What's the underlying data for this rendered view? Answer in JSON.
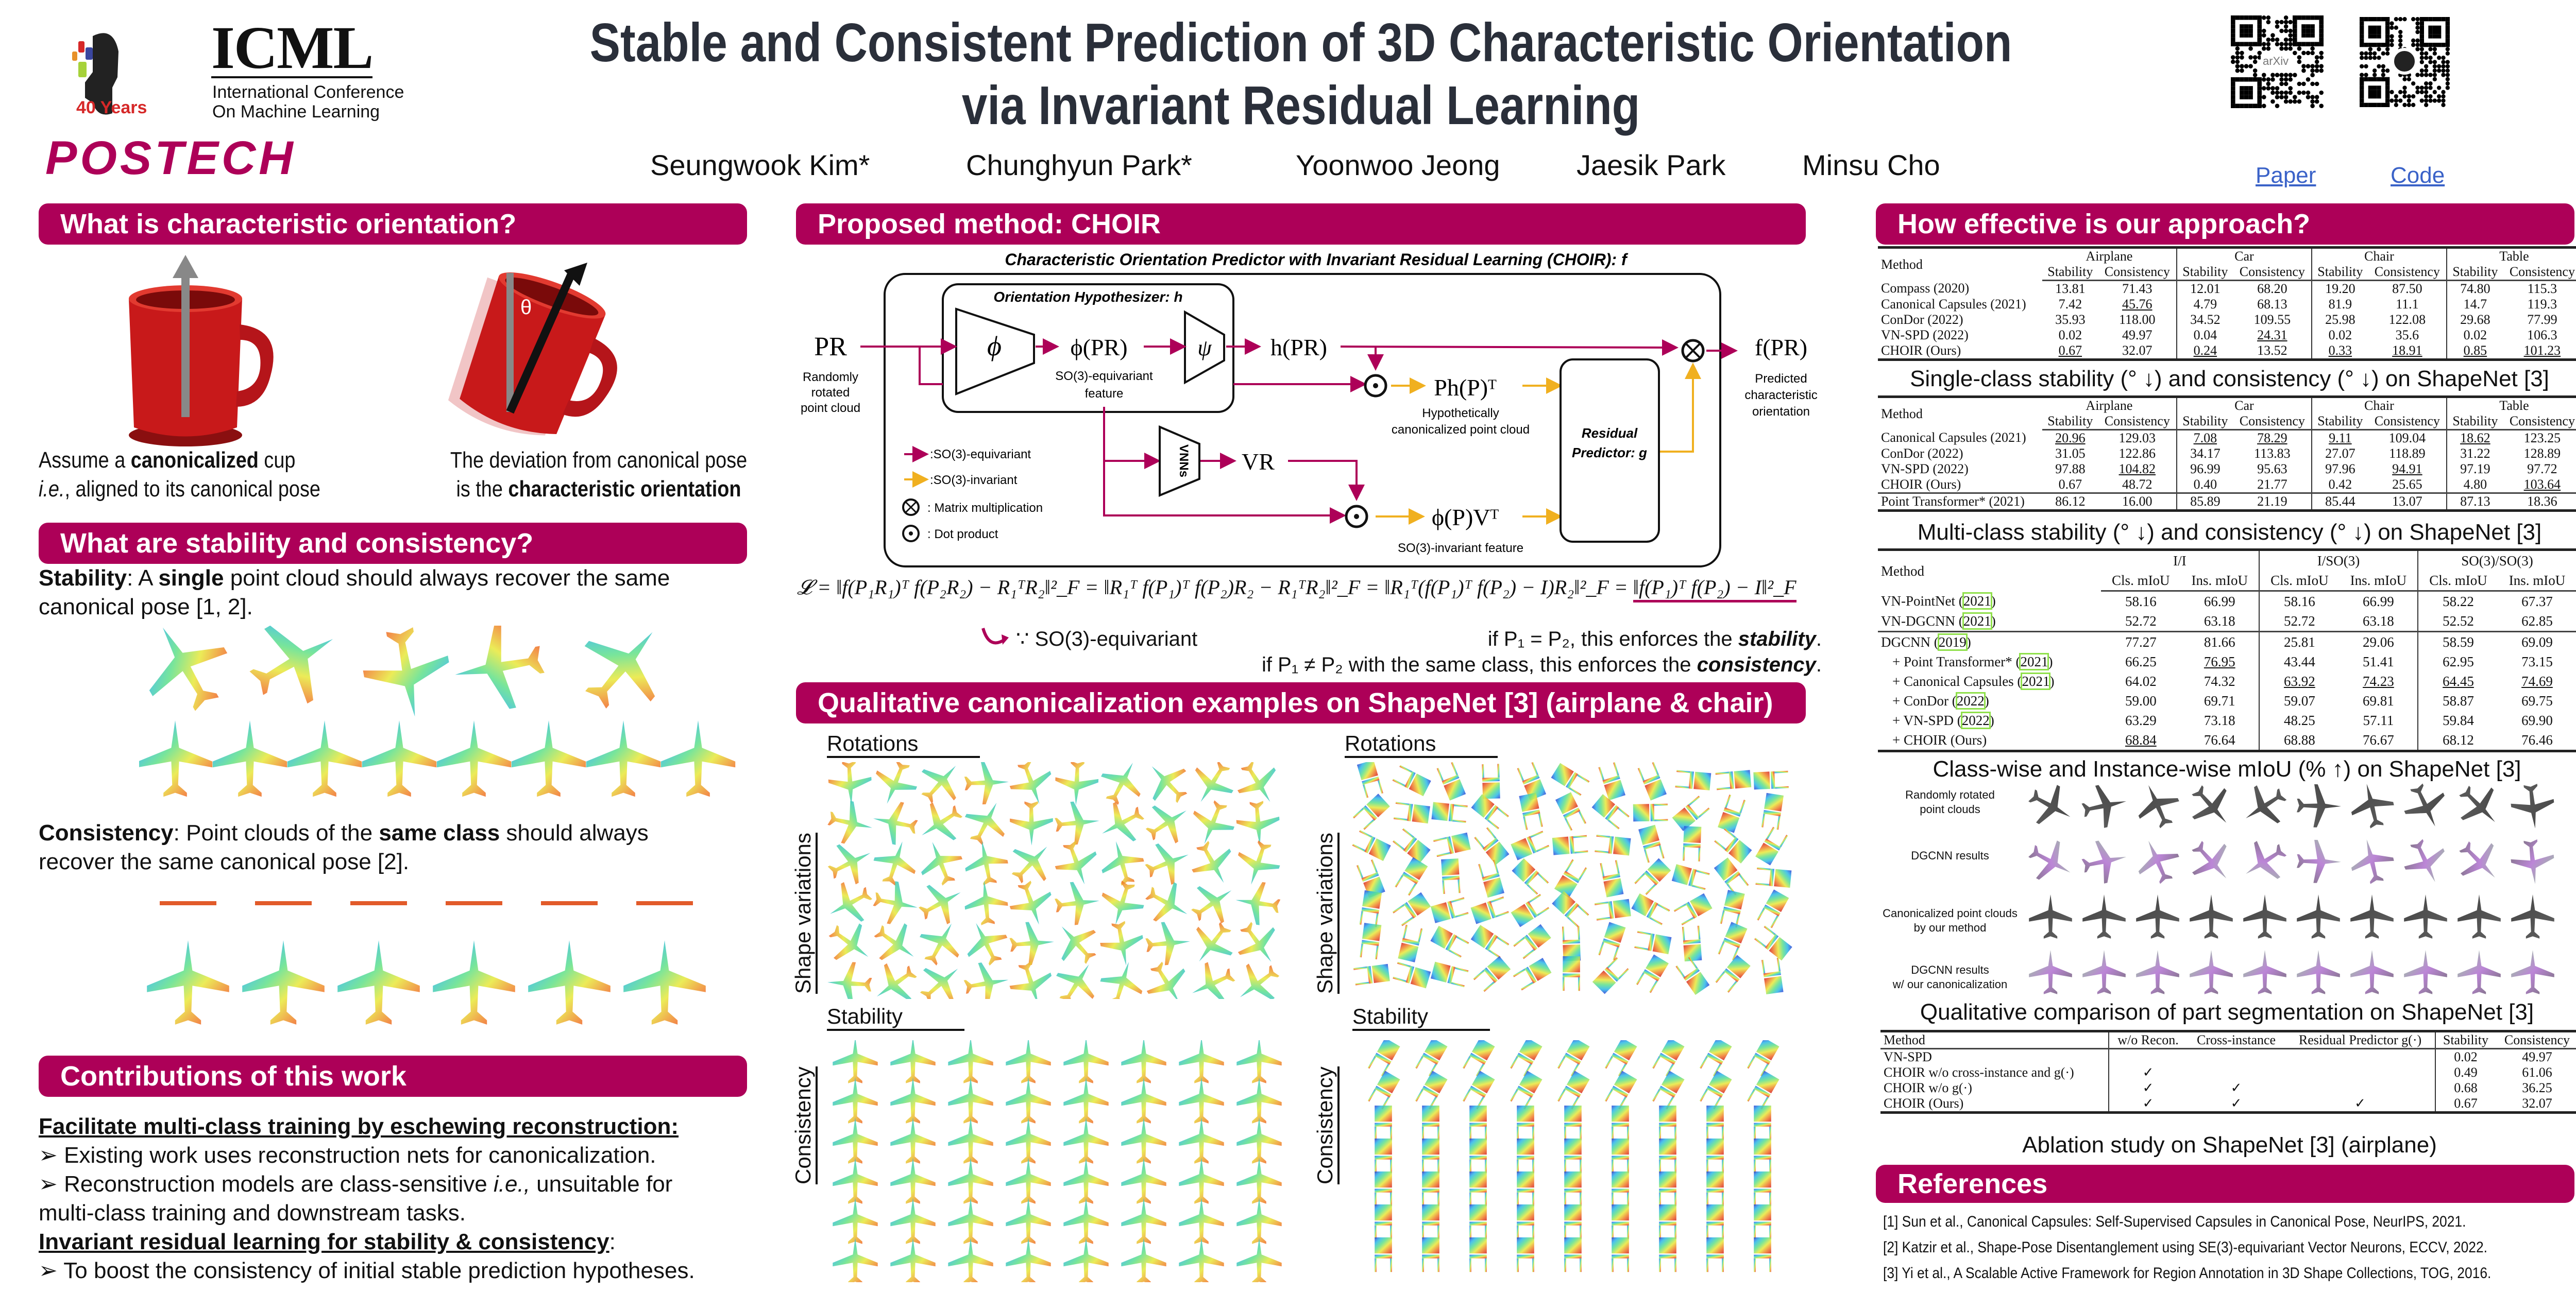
{
  "header": {
    "title_line1": "Stable and Consistent Prediction of 3D Characteristic Orientation",
    "title_line2": "via Invariant Residual Learning",
    "authors": [
      "Seungwook Kim*",
      "Chunghyun Park*",
      "Yoonwoo Jeong",
      "Jaesik Park",
      "Minsu Cho"
    ],
    "icml_logo": {
      "text": "ICML",
      "sub1": "International Conference",
      "sub2": "On Machine Learning",
      "badge": "40 Years"
    },
    "postech_logo": "POSTECH",
    "qr": [
      {
        "label": "Paper",
        "center_icon": "arxiv-logo",
        "center_text": "arXiv"
      },
      {
        "label": "Code",
        "center_icon": "github-icon"
      }
    ],
    "brand_color": "#ad0058"
  },
  "left": {
    "sec1_title": "What is characteristic orientation?",
    "cup_angle_label": "θ",
    "cap1_line1_pre": "Assume a ",
    "cap1_line1_bold": "canonicalized",
    "cap1_line1_post": " cup",
    "cap1_line2_it": "i.e.",
    "cap1_line2_post": ", aligned to its canonical pose",
    "cap2_line1": "The deviation from canonical pose",
    "cap2_line2_pre": "is the ",
    "cap2_line2_bold": "characteristic orientation",
    "sec2_title": "What are stability and consistency?",
    "stab_label": "Stability",
    "stab_pre": ": A ",
    "stab_bold": "single",
    "stab_post": " point cloud should always recover the same",
    "stab_line2": "canonical pose [1, 2].",
    "cons_label": "Consistency",
    "cons_pre": ": Point clouds of the ",
    "cons_bold": "same class",
    "cons_post": " should always",
    "cons_line2": "recover the same canonical pose [2].",
    "sec3_title": "Contributions of this work",
    "contrib": {
      "h1": "Facilitate multi-class training by eschewing reconstruction:",
      "b1": "➢ Existing work uses reconstruction nets for canonicalization.",
      "b2_pre": "➢ Reconstruction models are class-sensitive ",
      "b2_it": "i.e.,",
      "b2_post": " unsuitable for",
      "b2_line2": "multi-class training and downstream tasks.",
      "h2": "Invariant residual learning for stability & consistency",
      "h2_colon": ":",
      "b3": "➢ To boost the consistency of initial stable prediction hypotheses."
    }
  },
  "middle": {
    "sec1_title": "Proposed method: CHOIR",
    "diagram": {
      "title": "Characteristic Orientation Predictor with Invariant Residual Learning (CHOIR): f",
      "hyp_title": "Orientation Hypothesizer: h",
      "input": "PR",
      "input_cap": [
        "Randomly",
        "rotated",
        "point cloud"
      ],
      "phi": "ϕ",
      "phi_out": "ϕ(PR)",
      "phi_cap": [
        "SO(3)-equivariant",
        "feature"
      ],
      "psi": "ψ",
      "h_out": "h(PR)",
      "output": "f(PR)",
      "output_cap": [
        "Predicted",
        "characteristic",
        "orientation"
      ],
      "ph": "Ph(P)ᵀ",
      "ph_cap": [
        "Hypothetically",
        "canonicalized point cloud"
      ],
      "vnns": "VNNs",
      "vr": "VR",
      "phiv": "ϕ(P)Vᵀ",
      "phiv_cap": "SO(3)-invariant feature",
      "residual": [
        "Residual",
        "Predictor: g"
      ],
      "legend": [
        ":SO(3)-equivariant",
        ":SO(3)-invariant",
        ": Matrix multiplication",
        ": Dot product"
      ],
      "equivariant_color": "#ad0058",
      "invariant_color": "#f0b020"
    },
    "loss": "𝓛 = ‖f(P₁R₁)ᵀ f(P₂R₂) − R₁ᵀR₂‖²_F = ‖R₁ᵀ f(P₁)ᵀ f(P₂)R₂ − R₁ᵀR₂‖²_F = ‖R₁ᵀ(f(P₁)ᵀ f(P₂) − I)R₂‖²_F = ",
    "loss_final": "‖f(P₁)ᵀ f(P₂) − I‖²_F",
    "because": "∵ SO(3)-equivariant",
    "stab_note_pre": "if P₁ = P₂, this enforces the ",
    "stab_note_em": "stability",
    "stab_note_post": ".",
    "cons_note_pre": "if P₁ ≠ P₂ with the same class, this enforces the ",
    "cons_note_em": "consistency",
    "cons_note_post": ".",
    "sec2_title": "Qualitative canonicalization examples on ShapeNet [3] (airplane & chair)",
    "labels": {
      "rotations": "Rotations",
      "shape_variations": "Shape variations",
      "stability": "Stability",
      "consistency": "Consistency"
    }
  },
  "right": {
    "sec1_title": "How effective is our approach?",
    "classes": [
      "Airplane",
      "Car",
      "Chair",
      "Table"
    ],
    "metrics": [
      "Stability",
      "Consistency"
    ],
    "method_header": "Method",
    "table1": {
      "caption": "Single-class stability (° ↓) and consistency (° ↓) on ShapeNet [3]",
      "rows": [
        {
          "method": "Compass (2020)",
          "values": [
            "13.81",
            "71.43",
            "12.01",
            "68.20",
            "19.20",
            "87.50",
            "74.80",
            "115.3"
          ],
          "bold": [],
          "underline": []
        },
        {
          "method": "Canonical Capsules (2021)",
          "values": [
            "7.42",
            "45.76",
            "4.79",
            "68.13",
            "81.9",
            "11.1",
            "14.7",
            "119.3"
          ],
          "bold": [
            5
          ],
          "underline": [
            1
          ]
        },
        {
          "method": "ConDor (2022)",
          "values": [
            "35.93",
            "118.00",
            "34.52",
            "109.55",
            "25.98",
            "122.08",
            "29.68",
            "77.99"
          ],
          "bold": [
            7
          ],
          "underline": []
        },
        {
          "method": "VN-SPD (2022)",
          "values": [
            "0.02",
            "49.97",
            "0.04",
            "24.31",
            "0.02",
            "35.6",
            "0.02",
            "106.3"
          ],
          "bold": [
            0,
            2,
            4,
            6
          ],
          "underline": [
            3
          ]
        },
        {
          "method": "CHOIR (Ours)",
          "values": [
            "0.67",
            "32.07",
            "0.24",
            "13.52",
            "0.33",
            "18.91",
            "0.85",
            "101.23"
          ],
          "bold": [
            1,
            3
          ],
          "underline": [
            0,
            2,
            4,
            5,
            6,
            7
          ]
        }
      ]
    },
    "table2": {
      "caption": "Multi-class stability (° ↓) and consistency (° ↓) on ShapeNet [3]",
      "rows": [
        {
          "method": "Canonical Capsules (2021)",
          "values": [
            "20.96",
            "129.03",
            "7.08",
            "78.29",
            "9.11",
            "109.04",
            "18.62",
            "123.25"
          ],
          "bold": [],
          "underline": [
            0,
            2,
            3,
            4,
            6
          ]
        },
        {
          "method": "ConDor (2022)",
          "values": [
            "31.05",
            "122.86",
            "34.17",
            "113.83",
            "27.07",
            "118.89",
            "31.22",
            "128.89"
          ],
          "bold": [],
          "underline": []
        },
        {
          "method": "VN-SPD (2022)",
          "values": [
            "97.88",
            "104.82",
            "96.99",
            "95.63",
            "97.96",
            "94.91",
            "97.19",
            "97.72"
          ],
          "bold": [
            7
          ],
          "underline": [
            1,
            5
          ]
        },
        {
          "method": "CHOIR (Ours)",
          "values": [
            "0.67",
            "48.72",
            "0.40",
            "21.77",
            "0.42",
            "25.65",
            "4.80",
            "103.64"
          ],
          "bold": [
            0,
            1,
            2,
            3,
            4,
            5,
            6
          ],
          "underline": [
            7
          ]
        }
      ],
      "extra_rows": [
        {
          "method": "Point Transformer* (2021)",
          "values": [
            "86.12",
            "16.00",
            "85.89",
            "21.19",
            "85.44",
            "13.07",
            "87.13",
            "18.36"
          ],
          "bold": [],
          "underline": []
        }
      ]
    },
    "table3": {
      "caption": "Class-wise and Instance-wise mIoU (% ↑) on ShapeNet [3]",
      "groups": [
        "I/I",
        "I/SO(3)",
        "SO(3)/SO(3)"
      ],
      "metrics": [
        "Cls. mIoU",
        "Ins. mIoU"
      ],
      "block1": [
        {
          "name": "VN-PointNet",
          "year": "2021",
          "values": [
            "58.16",
            "66.99",
            "58.16",
            "66.99",
            "58.22",
            "67.37"
          ],
          "bold": [],
          "underline": []
        },
        {
          "name": "VN-DGCNN",
          "year": "2021",
          "values": [
            "52.72",
            "63.18",
            "52.72",
            "63.18",
            "52.52",
            "62.85"
          ],
          "bold": [],
          "underline": []
        }
      ],
      "block2": [
        {
          "name": "DGCNN",
          "year": "2019",
          "values": [
            "77.27",
            "81.66",
            "25.81",
            "29.06",
            "58.59",
            "69.09"
          ],
          "bold": [
            0,
            1
          ],
          "underline": []
        },
        {
          "name": "+ Point Transformer*",
          "year": "2021",
          "values": [
            "66.25",
            "76.95",
            "43.44",
            "51.41",
            "62.95",
            "73.15"
          ],
          "bold": [],
          "underline": [
            1
          ]
        },
        {
          "name": "+ Canonical Capsules",
          "year": "2021",
          "values": [
            "64.02",
            "74.32",
            "63.92",
            "74.23",
            "64.45",
            "74.69"
          ],
          "bold": [],
          "underline": [
            2,
            3,
            4,
            5
          ]
        },
        {
          "name": "+ ConDor",
          "year": "2022",
          "values": [
            "59.00",
            "69.71",
            "59.07",
            "69.81",
            "58.87",
            "69.75"
          ],
          "bold": [],
          "underline": []
        },
        {
          "name": "+ VN-SPD",
          "year": "2022",
          "values": [
            "63.29",
            "73.18",
            "48.25",
            "57.11",
            "59.84",
            "69.90"
          ],
          "bold": [],
          "underline": []
        },
        {
          "name": "+ CHOIR (Ours)",
          "year": "",
          "values": [
            "68.84",
            "76.64",
            "68.88",
            "76.67",
            "68.12",
            "76.46"
          ],
          "bold": [
            2,
            3,
            4,
            5
          ],
          "underline": [
            0
          ]
        }
      ]
    },
    "seg_figure": {
      "caption": "Qualitative comparison of part segmentation on ShapeNet [3]",
      "row_labels": [
        [
          "Randomly rotated",
          "point clouds"
        ],
        [
          "DGCNN results"
        ],
        [
          "Canonicalized point clouds",
          "by our method"
        ],
        [
          "DGCNN results",
          "w/ our canonicalization"
        ]
      ]
    },
    "table4": {
      "caption": "Ablation study on ShapeNet [3] (airplane)",
      "headers": [
        "Method",
        "w/o Recon.",
        "Cross-instance",
        "Residual Predictor g(·)",
        "Stability",
        "Consistency"
      ],
      "check": "✓",
      "rows": [
        {
          "method": "VN-SPD",
          "checks": [
            false,
            false,
            false
          ],
          "stability": "0.02",
          "consistency": "49.97"
        },
        {
          "method": "CHOIR w/o cross-instance and g(·)",
          "checks": [
            true,
            false,
            false
          ],
          "stability": "0.49",
          "consistency": "61.06"
        },
        {
          "method": "CHOIR w/o g(·)",
          "checks": [
            true,
            true,
            false
          ],
          "stability": "0.68",
          "consistency": "36.25"
        },
        {
          "method": "CHOIR (Ours)",
          "checks": [
            true,
            true,
            true
          ],
          "stability": "0.67",
          "consistency": "32.07"
        }
      ]
    },
    "sec2_title": "References",
    "references": [
      "[1] Sun et al., Canonical Capsules: Self-Supervised Capsules in Canonical Pose, NeurIPS, 2021.",
      "[2] Katzir et al., Shape-Pose Disentanglement using SE(3)-equivariant Vector Neurons, ECCV, 2022.",
      "[3] Yi et al., A Scalable Active Framework for Region Annotation in 3D Shape Collections, TOG, 2016."
    ]
  }
}
